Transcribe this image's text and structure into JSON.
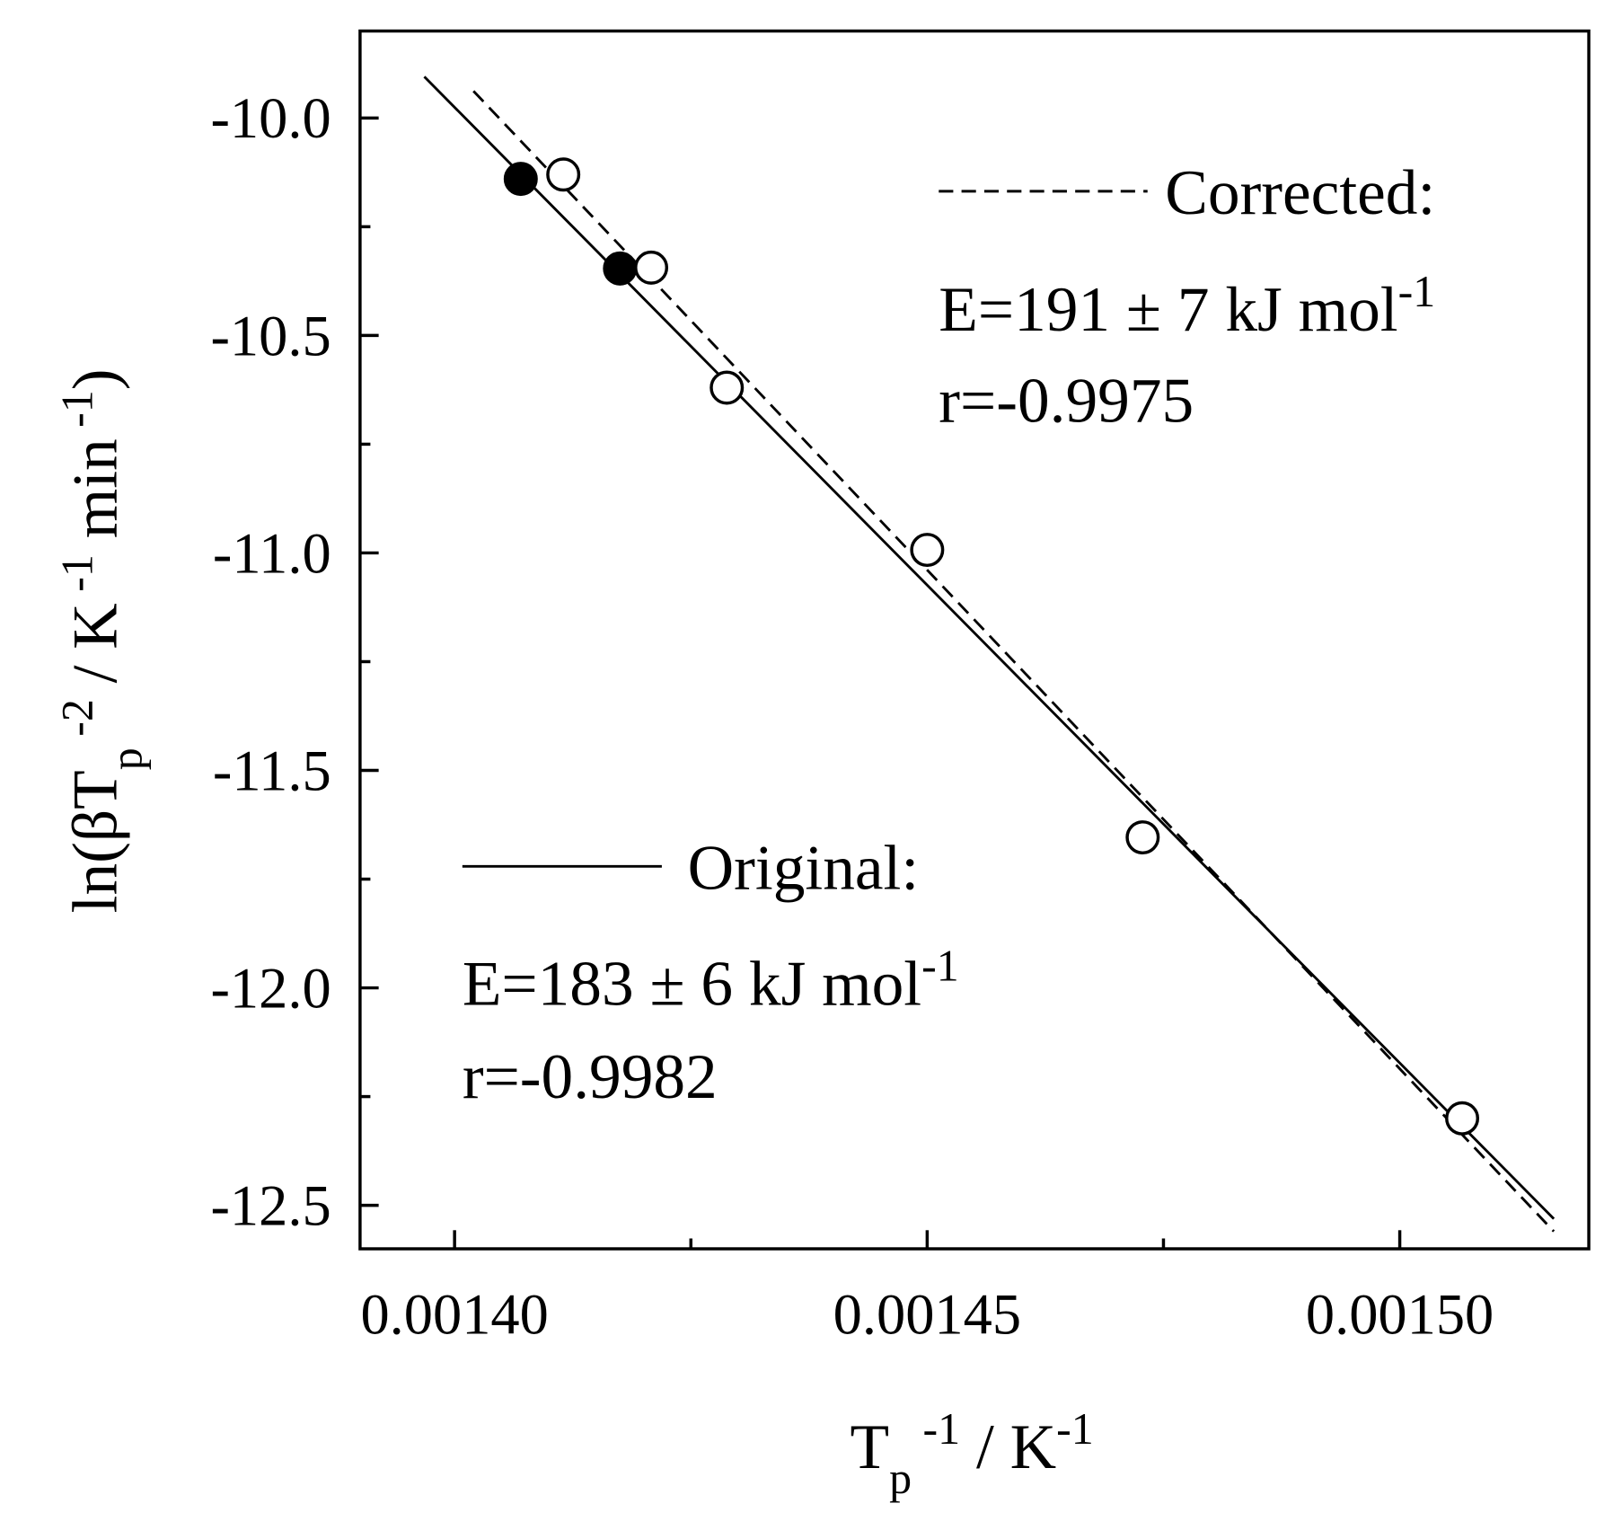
{
  "chart_data": {
    "type": "scatter",
    "xlim": [
      0.00139,
      0.00152
    ],
    "ylim": [
      -12.6,
      -9.8
    ],
    "xticks": [
      {
        "value": 0.0014,
        "label": "0.00140"
      },
      {
        "value": 0.00145,
        "label": "0.00145"
      },
      {
        "value": 0.0015,
        "label": "0.00150"
      }
    ],
    "xminor": [
      0.001425,
      0.001475
    ],
    "yticks": [
      {
        "value": -10,
        "label": "-10.0"
      },
      {
        "value": -10.5,
        "label": "-10.5"
      },
      {
        "value": -11,
        "label": "-11.0"
      },
      {
        "value": -11.5,
        "label": "-11.5"
      },
      {
        "value": -12,
        "label": "-12.0"
      },
      {
        "value": -12.5,
        "label": "-12.5"
      }
    ],
    "yminor": [
      -10.25,
      -10.75,
      -11.25,
      -11.75,
      -12.25
    ],
    "xlabel": [
      {
        "text": "T"
      },
      {
        "text": "p",
        "shift": "sub"
      },
      {
        "text": " -1",
        "shift": "super"
      },
      {
        "text": " / K"
      },
      {
        "text": "-1",
        "shift": "super"
      }
    ],
    "ylabel": [
      {
        "text": "ln(βT"
      },
      {
        "text": "p",
        "shift": "sub"
      },
      {
        "text": " -2",
        "shift": "super"
      },
      {
        "text": " / K"
      },
      {
        "text": " -1",
        "shift": "super"
      },
      {
        "text": " min"
      },
      {
        "text": " -1",
        "shift": "super"
      },
      {
        "text": ")"
      }
    ],
    "series": [
      {
        "marker": "filled",
        "color": "#000000",
        "x": [
          0.001407,
          0.0014175
        ],
        "values": [
          -10.14,
          -10.346
        ]
      },
      {
        "marker": "open",
        "color": "#000000",
        "x": [
          0.0014115,
          0.0014208,
          0.0014288,
          0.00145,
          0.0014728,
          0.0015066
        ],
        "values": [
          -10.13,
          -10.344,
          -10.62,
          -10.993,
          -11.654,
          -12.3
        ]
      }
    ],
    "lines": [
      {
        "name": "Corrected:",
        "style": "dashed",
        "color": "#000000",
        "x": [
          0.001402,
          0.0015163
        ],
        "values": [
          -9.938,
          -12.56
        ],
        "annotation": [
          [
            {
              "text": "E=191 ± 7 kJ mol"
            },
            {
              "text": "-1",
              "shift": "super"
            }
          ],
          [
            {
              "text": "r=-0.9975"
            }
          ]
        ]
      },
      {
        "name": "Original:",
        "style": "solid",
        "color": "#000000",
        "x": [
          0.0013968,
          0.0015163
        ],
        "values": [
          -9.905,
          -12.531
        ],
        "annotation": [
          [
            {
              "text": "E=183 ± 6 kJ mol"
            },
            {
              "text": "-1",
              "shift": "super"
            }
          ],
          [
            {
              "text": "r=-0.9982"
            }
          ]
        ]
      }
    ]
  }
}
